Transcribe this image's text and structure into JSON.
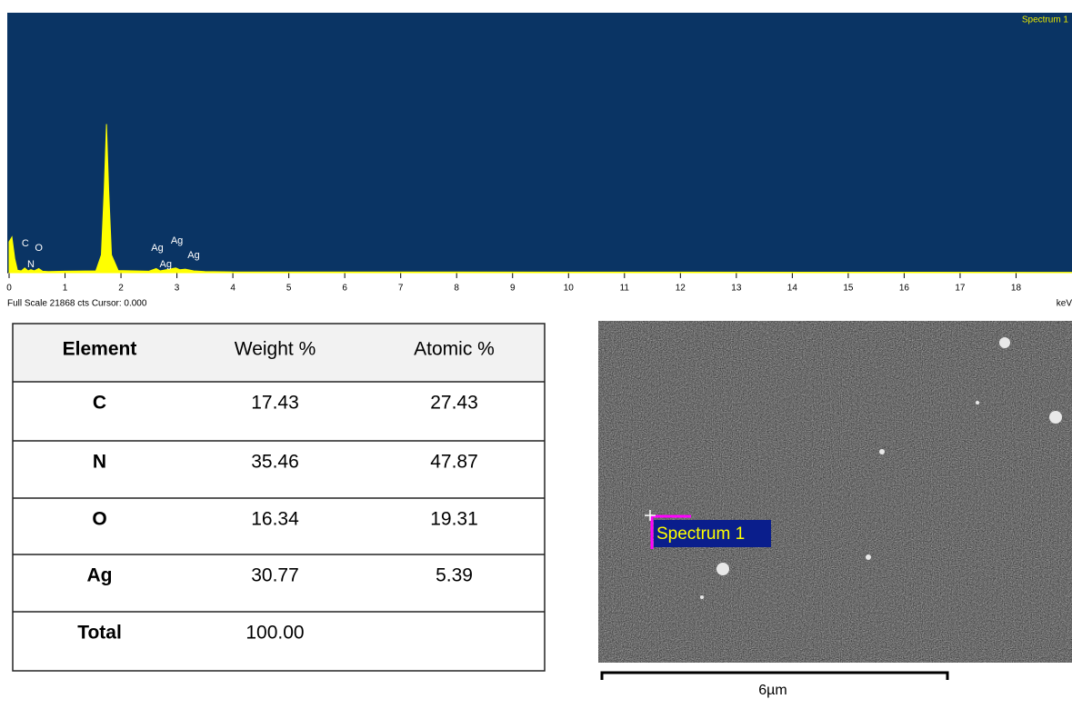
{
  "chart_data": {
    "type": "line",
    "title": "Spectrum 1",
    "status_text": "Full Scale 21868 cts Cursor: 0.000",
    "x_label": "keV",
    "x": [
      0,
      0.05,
      0.1,
      0.15,
      0.22,
      0.28,
      0.34,
      0.39,
      0.45,
      0.53,
      0.6,
      0.7,
      1.0,
      1.55,
      1.65,
      1.7,
      1.74,
      1.78,
      1.83,
      1.95,
      2.5,
      2.63,
      2.7,
      2.98,
      3.05,
      3.15,
      3.3,
      3.5,
      4.0,
      19
    ],
    "values": [
      2600,
      3000,
      1200,
      200,
      150,
      400,
      150,
      250,
      150,
      350,
      120,
      100,
      120,
      150,
      1500,
      7000,
      12500,
      7000,
      1500,
      180,
      120,
      350,
      150,
      400,
      250,
      300,
      150,
      100,
      60,
      30
    ],
    "color": "#ffff00",
    "background": "#0a3464",
    "xlim": [
      0,
      19
    ],
    "ylim": [
      0,
      21868
    ],
    "xticks": [
      0,
      1,
      2,
      3,
      4,
      5,
      6,
      7,
      8,
      9,
      10,
      11,
      12,
      13,
      14,
      15,
      16,
      17,
      18
    ],
    "annotations": [
      {
        "text": "C",
        "x": 0.29
      },
      {
        "text": "O",
        "x": 0.53
      },
      {
        "text": "N",
        "x": 0.39
      },
      {
        "text": "Ag",
        "x": 2.65
      },
      {
        "text": "Ag",
        "x": 3.0
      },
      {
        "text": "Ag",
        "x": 3.3
      },
      {
        "text": "Ag",
        "x": 2.8
      }
    ]
  },
  "table": {
    "header": [
      "Element",
      "Weight %",
      "Atomic %"
    ],
    "rows": [
      [
        "C",
        "17.43",
        "27.43"
      ],
      [
        "N",
        "35.46",
        "47.87"
      ],
      [
        "O",
        "16.34",
        "19.31"
      ],
      [
        "Ag",
        "30.77",
        "5.39"
      ],
      [
        "Total",
        "100.00"
      ]
    ]
  },
  "image": {
    "spectrum_label": "Spectrum 1",
    "scale_bar": "6µm"
  }
}
